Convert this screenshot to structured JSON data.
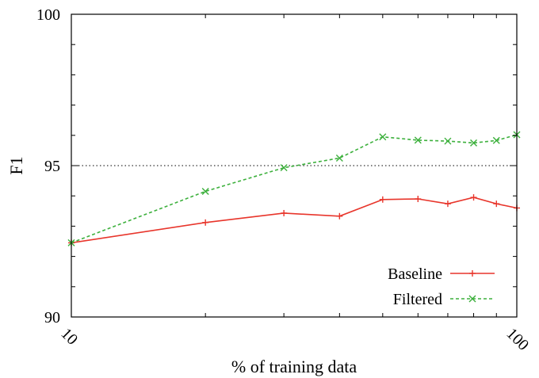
{
  "chart_data": {
    "type": "line",
    "title": "",
    "xlabel": "% of training data",
    "ylabel": "F1",
    "x_scale": "log",
    "xlim": [
      10,
      100
    ],
    "ylim": [
      90,
      100
    ],
    "x_ticks": [
      {
        "value": 10,
        "label": "10"
      },
      {
        "value": 100,
        "label": "100"
      }
    ],
    "y_ticks": [
      {
        "value": 90,
        "label": "90"
      },
      {
        "value": 95,
        "label": "95"
      },
      {
        "value": 100,
        "label": "100"
      }
    ],
    "reference_line": {
      "y": 95,
      "style": "dotted"
    },
    "legend_position": "bottom-right",
    "x": [
      10,
      20,
      30,
      40,
      50,
      60,
      70,
      80,
      90,
      100
    ],
    "series": [
      {
        "name": "Baseline",
        "color": "#e8352b",
        "line_style": "solid",
        "marker": "plus",
        "values": [
          92.45,
          93.12,
          93.43,
          93.33,
          93.88,
          93.9,
          93.74,
          93.95,
          93.74,
          93.6
        ]
      },
      {
        "name": "Filtered",
        "color": "#3cb03c",
        "line_style": "dashed",
        "marker": "x",
        "values": [
          92.45,
          94.15,
          94.93,
          95.25,
          95.95,
          95.84,
          95.81,
          95.75,
          95.83,
          96.02
        ]
      }
    ]
  }
}
